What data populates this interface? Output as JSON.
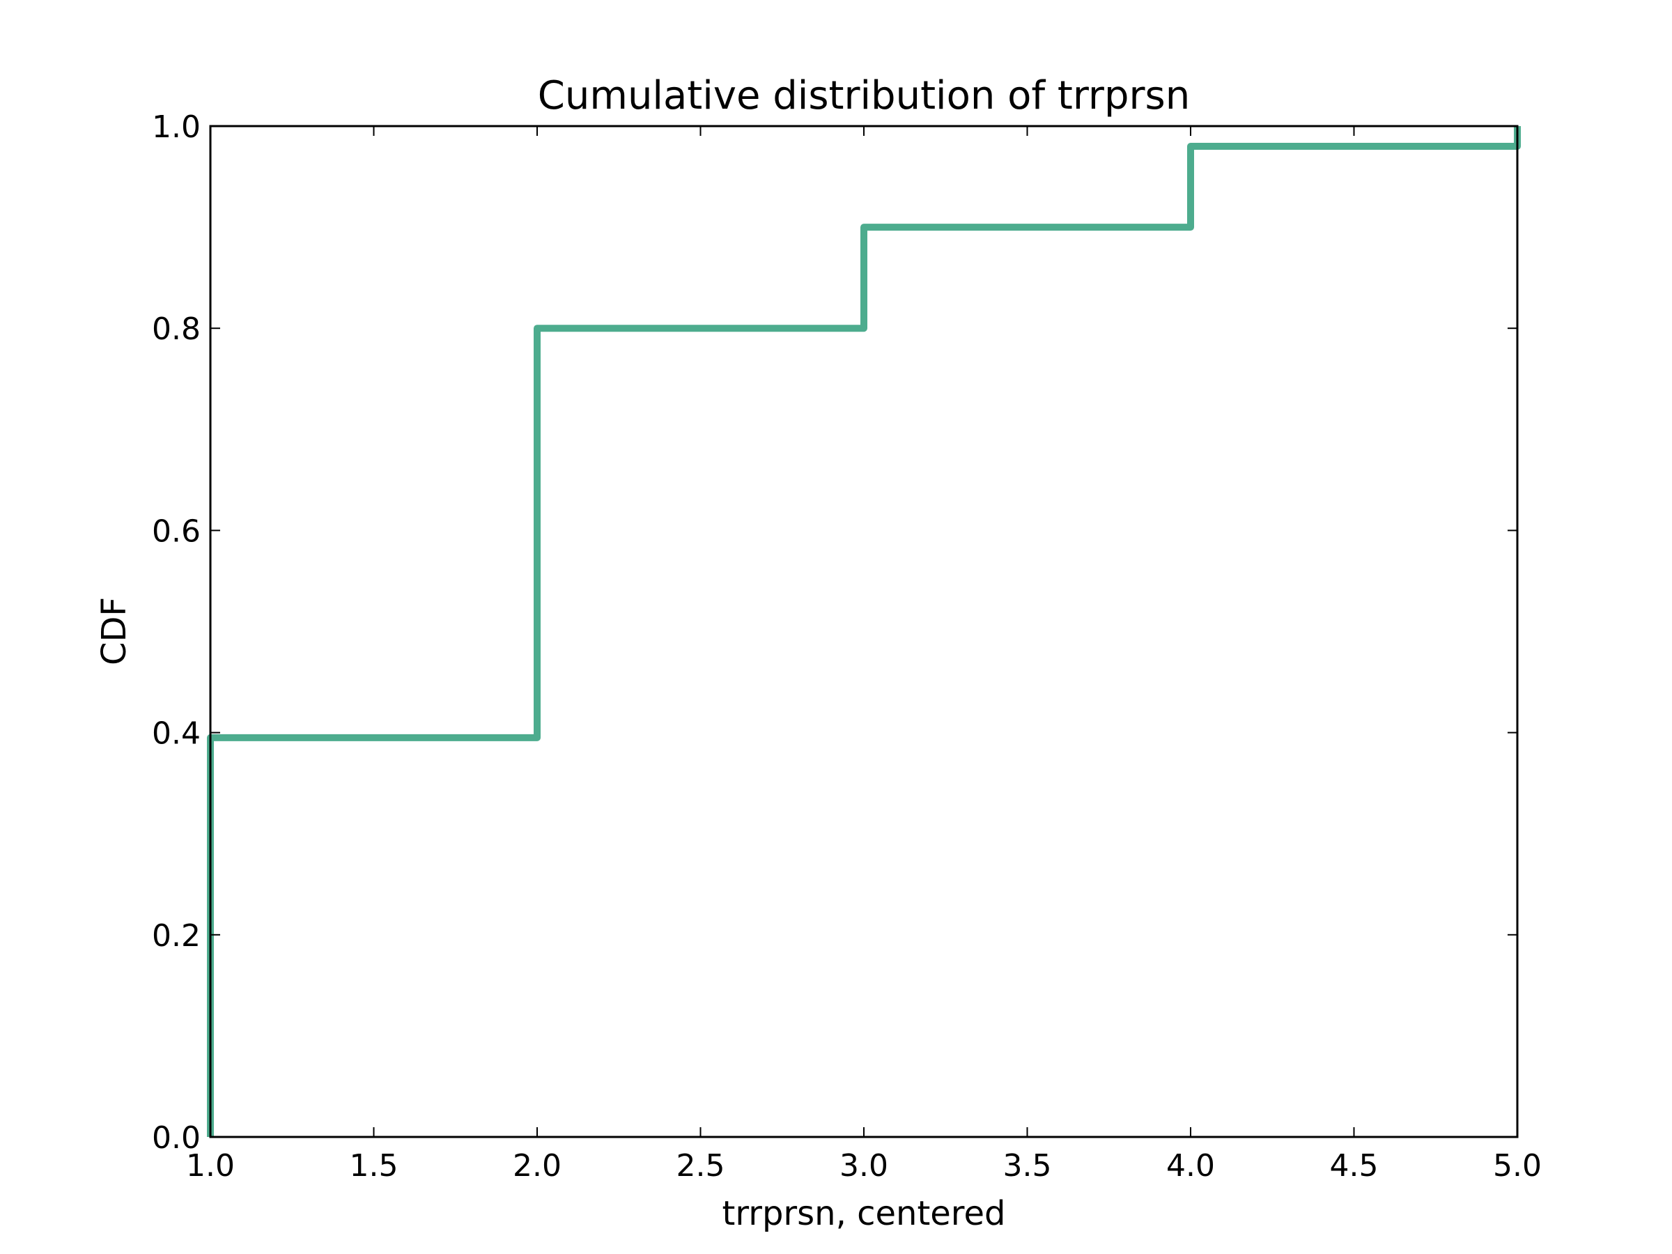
{
  "chart_data": {
    "type": "line",
    "title": "Cumulative distribution of trrprsn",
    "xlabel": "trrprsn, centered",
    "ylabel": "CDF",
    "xlim": [
      1.0,
      5.0
    ],
    "ylim": [
      0.0,
      1.0
    ],
    "x_ticks": [
      "1.0",
      "1.5",
      "2.0",
      "2.5",
      "3.0",
      "3.5",
      "4.0",
      "4.5",
      "5.0"
    ],
    "y_ticks": [
      "0.0",
      "0.2",
      "0.4",
      "0.6",
      "0.8",
      "1.0"
    ],
    "grid": false,
    "legend": "none",
    "step": true,
    "series": [
      {
        "color": "#4dac8e",
        "points": [
          {
            "x": 1.0,
            "y": 0.0
          },
          {
            "x": 1.0,
            "y": 0.395
          },
          {
            "x": 2.0,
            "y": 0.395
          },
          {
            "x": 2.0,
            "y": 0.8
          },
          {
            "x": 3.0,
            "y": 0.8
          },
          {
            "x": 3.0,
            "y": 0.9
          },
          {
            "x": 4.0,
            "y": 0.9
          },
          {
            "x": 4.0,
            "y": 0.98
          },
          {
            "x": 5.0,
            "y": 0.98
          },
          {
            "x": 5.0,
            "y": 1.0
          }
        ]
      }
    ]
  }
}
